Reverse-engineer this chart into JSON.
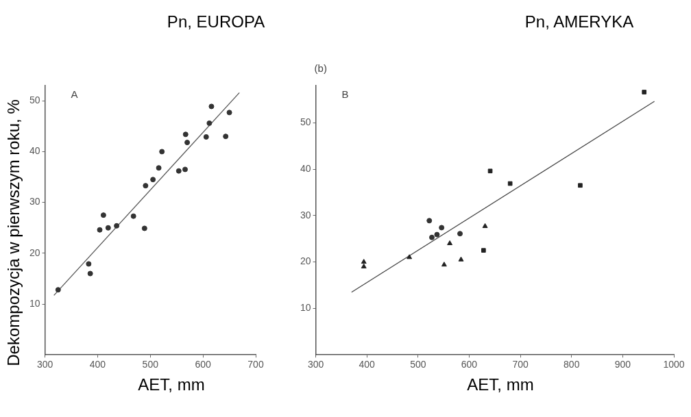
{
  "chart_data": [
    {
      "type": "scatter",
      "title": "Pn, EUROPA",
      "xlabel": "AET, mm",
      "ylabel": "Dekompozycja w pierwszym roku, %",
      "annotations": [
        "A"
      ],
      "xlim": [
        300,
        700
      ],
      "xticks": [
        300,
        400,
        500,
        600,
        700
      ],
      "ylim": [
        0,
        53
      ],
      "yticks": [
        10,
        20,
        30,
        40,
        50
      ],
      "grid": false,
      "legend": false,
      "marker": "circle",
      "series": [
        {
          "color": "#333333",
          "x": [
            325,
            383,
            386,
            404,
            411,
            420,
            436,
            468,
            489,
            491,
            505,
            516,
            522,
            554,
            566,
            567,
            570,
            606,
            612,
            616,
            643,
            650
          ],
          "values": [
            12.8,
            17.9,
            16.0,
            24.6,
            27.5,
            25.0,
            25.4,
            27.3,
            24.9,
            33.3,
            34.5,
            36.8,
            40.0,
            36.2,
            36.5,
            43.4,
            41.8,
            42.9,
            45.6,
            48.9,
            43.0,
            47.7
          ]
        },
        {
          "type": "line",
          "marker": "none",
          "color": "#555555",
          "x": [
            317,
            669
          ],
          "values": [
            11.7,
            51.6
          ]
        }
      ]
    },
    {
      "type": "scatter",
      "title": "Pn, AMERYKA",
      "xlabel": "AET, mm",
      "annotations": [
        "(b)",
        "B"
      ],
      "xlim": [
        300,
        1000
      ],
      "xticks": [
        300,
        400,
        500,
        600,
        700,
        800,
        900,
        1000
      ],
      "ylim": [
        0,
        58
      ],
      "yticks": [
        10,
        20,
        30,
        40,
        50
      ],
      "grid": false,
      "legend": false,
      "series": [
        {
          "marker": "square",
          "color": "#222222",
          "x": [
            628,
            641,
            680,
            817,
            942
          ],
          "values": [
            22.5,
            39.6,
            36.9,
            36.5,
            56.6
          ]
        },
        {
          "marker": "circle",
          "color": "#333333",
          "x": [
            522,
            527,
            537,
            546,
            582
          ],
          "values": [
            28.9,
            25.3,
            25.9,
            27.4,
            26.1
          ]
        },
        {
          "marker": "triangle",
          "color": "#222222",
          "x": [
            394,
            394,
            483,
            551,
            562,
            584,
            631
          ],
          "values": [
            20.0,
            19.0,
            21.0,
            19.4,
            24.0,
            20.5,
            27.7
          ]
        },
        {
          "type": "line",
          "marker": "none",
          "color": "#444444",
          "x": [
            370,
            962
          ],
          "values": [
            13.5,
            54.6
          ]
        }
      ]
    }
  ]
}
